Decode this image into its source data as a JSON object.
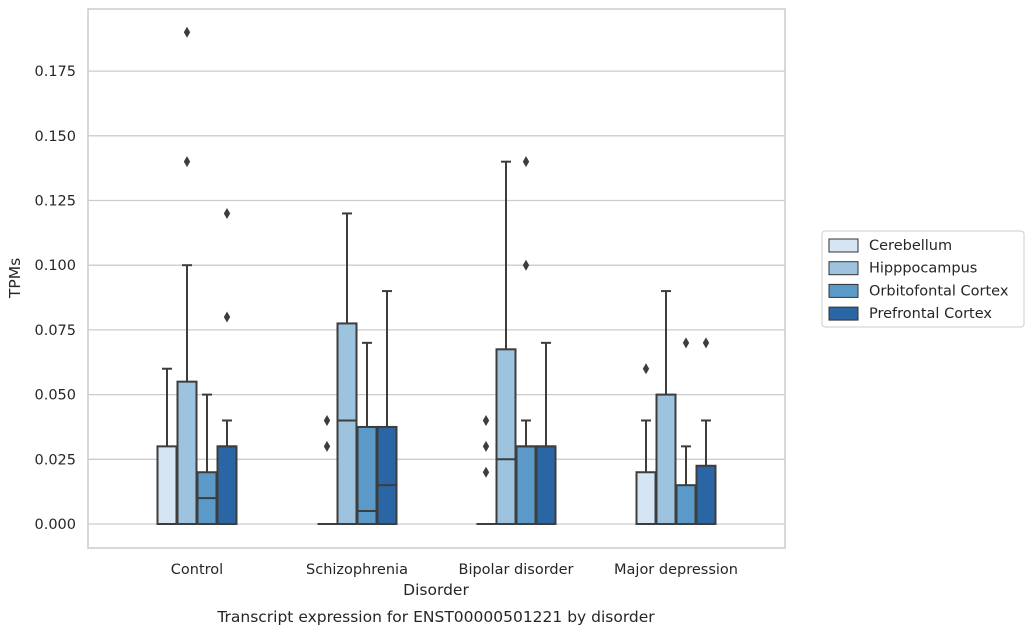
{
  "chart_data": {
    "type": "boxplot",
    "title": "",
    "caption": "Transcript expression for ENST00000501221 by disorder",
    "xlabel": "Disorder",
    "ylabel": "TPMs",
    "ylim": [
      -0.0185,
      0.1985
    ],
    "yticks": [
      0.0,
      0.025,
      0.05,
      0.075,
      0.1,
      0.125,
      0.15,
      0.175
    ],
    "ytick_labels": [
      "0.000",
      "0.025",
      "0.050",
      "0.075",
      "0.100",
      "0.125",
      "0.150",
      "0.175"
    ],
    "grid": true,
    "legend_position": "right",
    "categories": [
      "Control",
      "Schizophrenia",
      "Bipolar disorder",
      "Major depression"
    ],
    "series": [
      {
        "name": "Cerebellum",
        "color": "#d6e5f3",
        "boxes": [
          {
            "q1": 0.0,
            "median": 0.0,
            "q3": 0.03,
            "whisker_low": 0.0,
            "whisker_high": 0.06,
            "outliers": []
          },
          {
            "q1": 0.0,
            "median": 0.0,
            "q3": 0.0,
            "whisker_low": 0.0,
            "whisker_high": 0.0,
            "outliers": [
              0.03,
              0.04
            ]
          },
          {
            "q1": 0.0,
            "median": 0.0,
            "q3": 0.0,
            "whisker_low": 0.0,
            "whisker_high": 0.0,
            "outliers": [
              0.02,
              0.03,
              0.04
            ]
          },
          {
            "q1": 0.0,
            "median": 0.0,
            "q3": 0.02,
            "whisker_low": 0.0,
            "whisker_high": 0.04,
            "outliers": [
              0.06
            ]
          }
        ]
      },
      {
        "name": "Hipppocampus",
        "color": "#9dc3de",
        "boxes": [
          {
            "q1": 0.0,
            "median": 0.0,
            "q3": 0.055,
            "whisker_low": 0.0,
            "whisker_high": 0.1,
            "outliers": [
              0.14,
              0.19
            ]
          },
          {
            "q1": 0.0,
            "median": 0.04,
            "q3": 0.0775,
            "whisker_low": 0.0,
            "whisker_high": 0.12,
            "outliers": []
          },
          {
            "q1": 0.0,
            "median": 0.025,
            "q3": 0.0675,
            "whisker_low": 0.0,
            "whisker_high": 0.14,
            "outliers": []
          },
          {
            "q1": 0.0,
            "median": 0.0,
            "q3": 0.05,
            "whisker_low": 0.0,
            "whisker_high": 0.09,
            "outliers": []
          }
        ]
      },
      {
        "name": "Orbitofontal Cortex",
        "color": "#5b9ac8",
        "boxes": [
          {
            "q1": 0.0,
            "median": 0.01,
            "q3": 0.02,
            "whisker_low": 0.0,
            "whisker_high": 0.05,
            "outliers": []
          },
          {
            "q1": 0.0,
            "median": 0.005,
            "q3": 0.0375,
            "whisker_low": 0.0,
            "whisker_high": 0.07,
            "outliers": []
          },
          {
            "q1": 0.0,
            "median": 0.03,
            "q3": 0.03,
            "whisker_low": 0.0,
            "whisker_high": 0.04,
            "outliers": [
              0.1,
              0.14
            ]
          },
          {
            "q1": 0.0,
            "median": 0.0,
            "q3": 0.015,
            "whisker_low": 0.0,
            "whisker_high": 0.03,
            "outliers": [
              0.07
            ]
          }
        ]
      },
      {
        "name": "Prefrontal Cortex",
        "color": "#2a66a4",
        "boxes": [
          {
            "q1": 0.0,
            "median": 0.03,
            "q3": 0.03,
            "whisker_low": 0.0,
            "whisker_high": 0.04,
            "outliers": [
              0.08,
              0.12
            ]
          },
          {
            "q1": 0.0,
            "median": 0.015,
            "q3": 0.0375,
            "whisker_low": 0.0,
            "whisker_high": 0.09,
            "outliers": []
          },
          {
            "q1": 0.0,
            "median": 0.03,
            "q3": 0.03,
            "whisker_low": 0.0,
            "whisker_high": 0.07,
            "outliers": []
          },
          {
            "q1": 0.0,
            "median": 0.0,
            "q3": 0.0225,
            "whisker_low": 0.0,
            "whisker_high": 0.04,
            "outliers": [
              0.07
            ]
          }
        ]
      }
    ]
  }
}
